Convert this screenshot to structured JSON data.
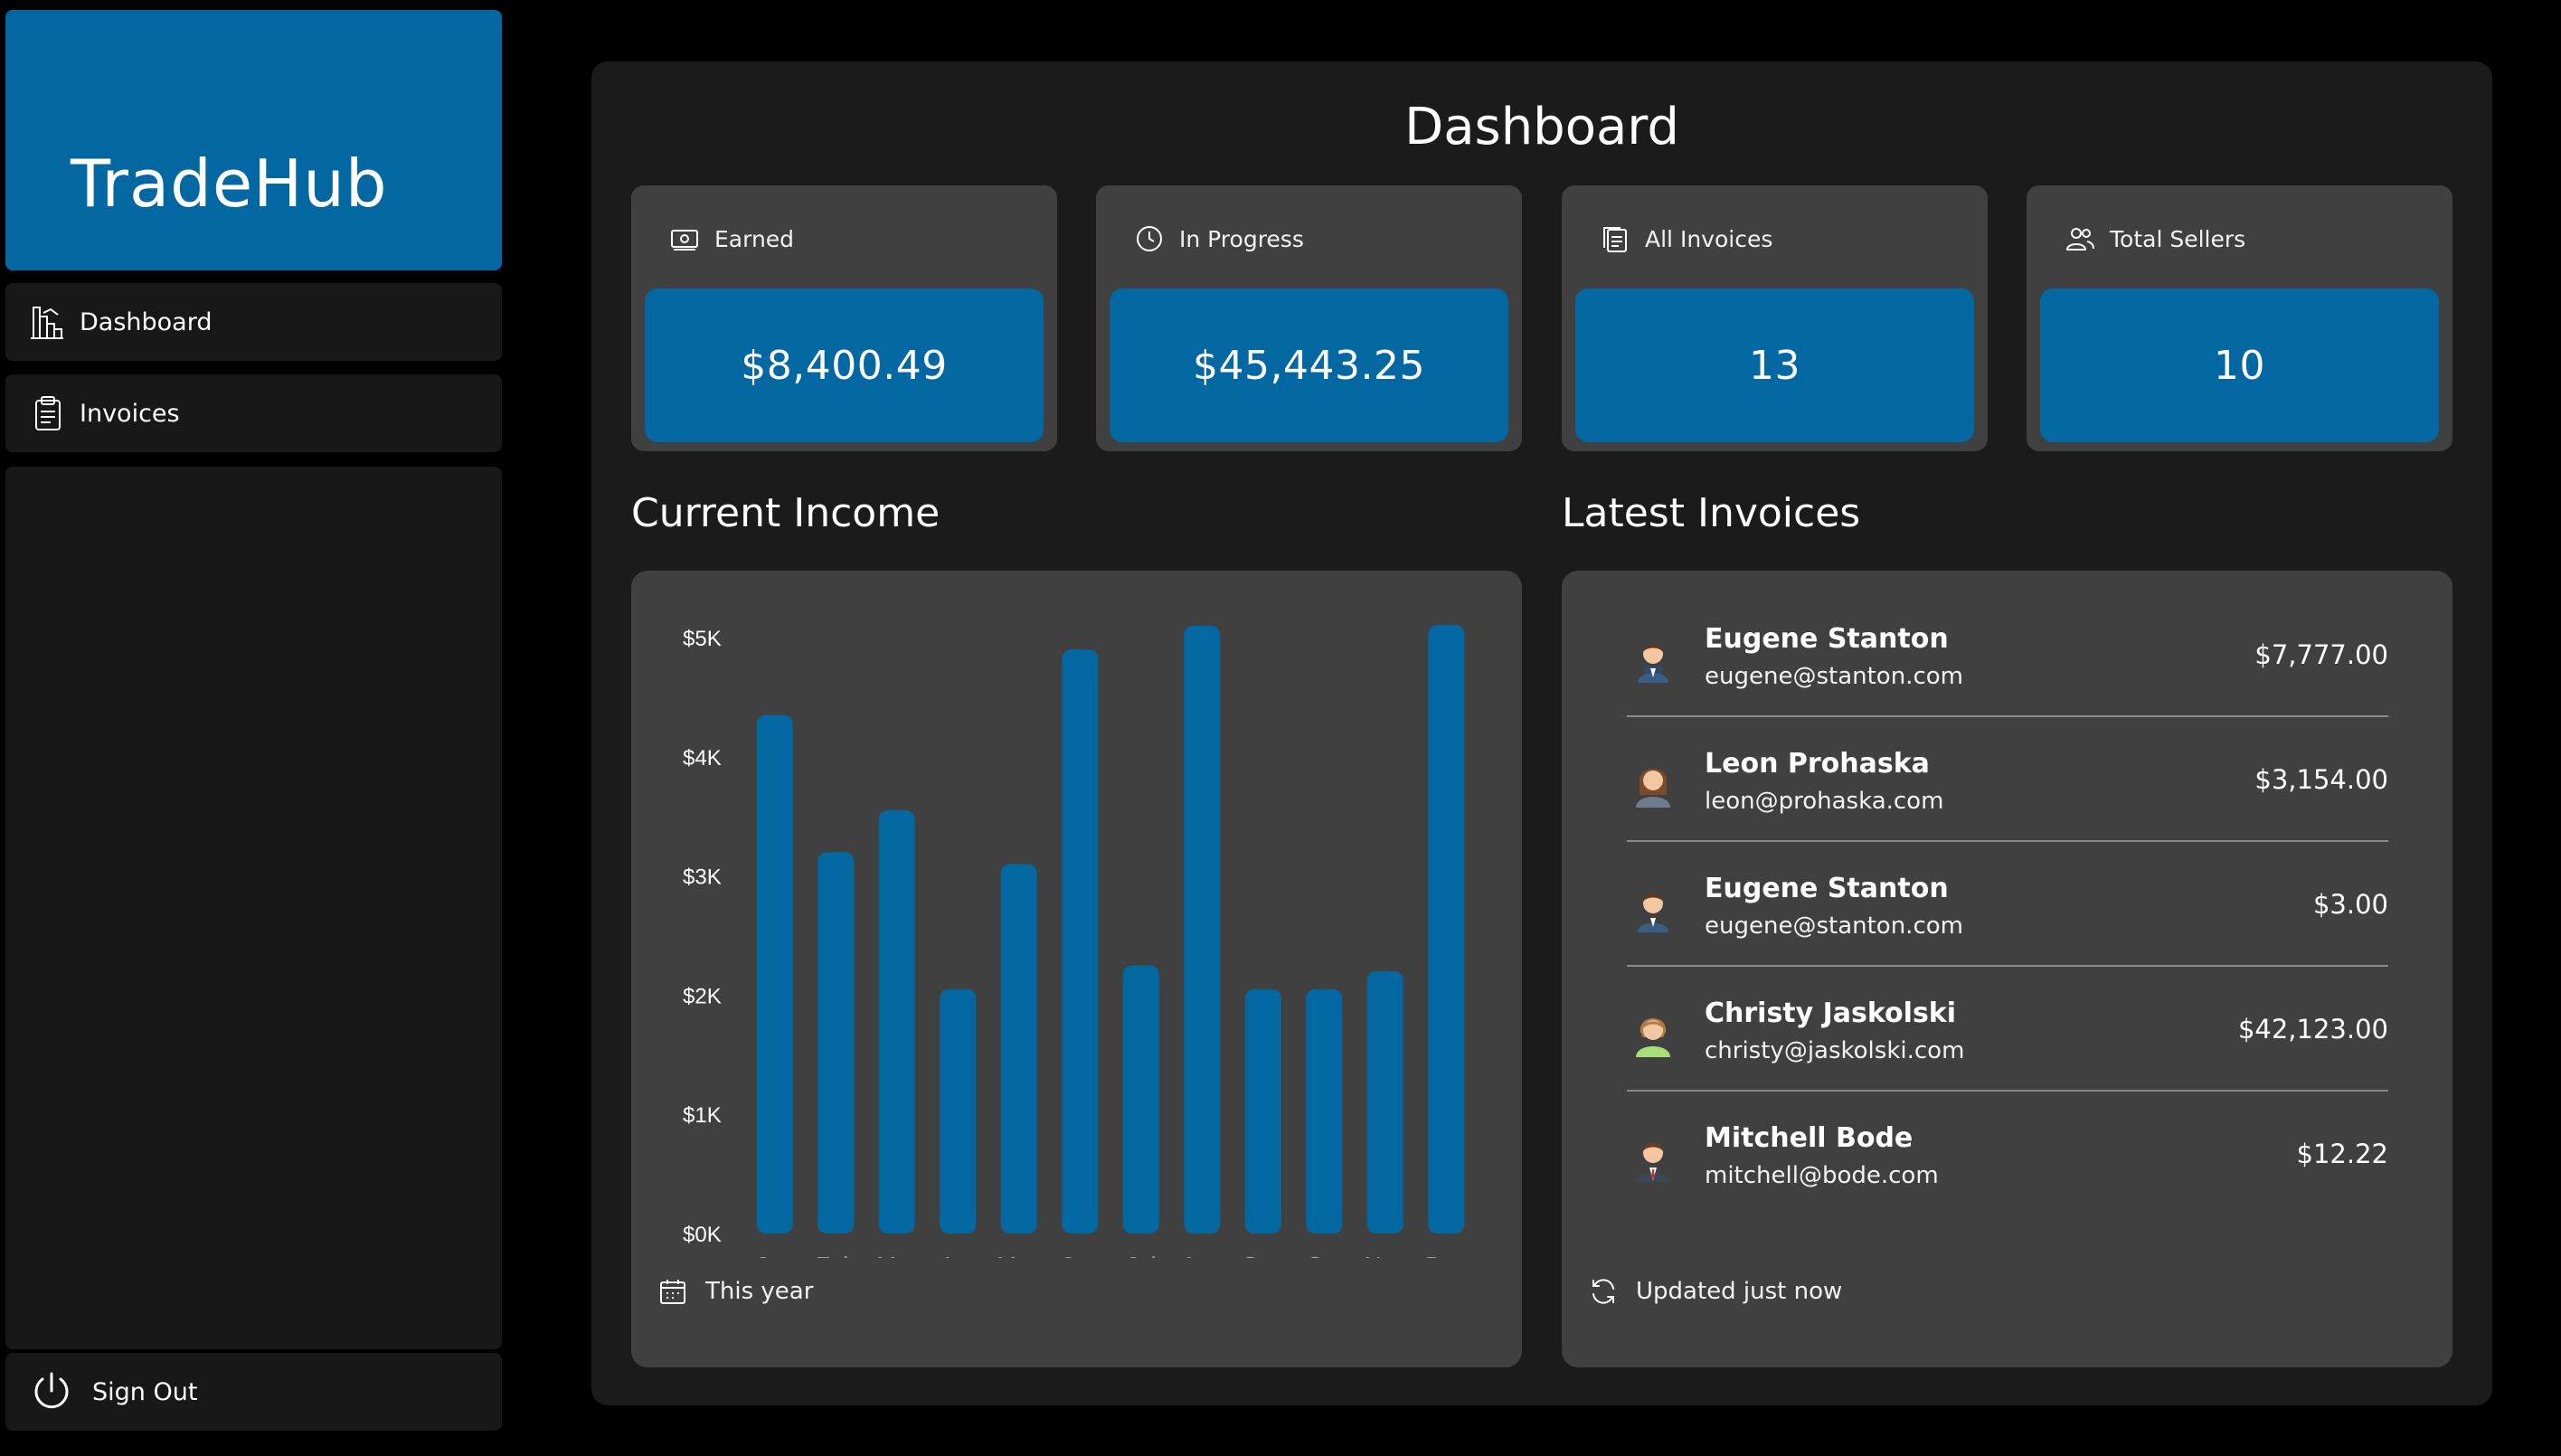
{
  "app": {
    "brand": "TradeHub"
  },
  "sidebar": {
    "items": [
      {
        "label": "Dashboard",
        "icon": "building-chart-icon"
      },
      {
        "label": "Invoices",
        "icon": "clipboard-icon"
      }
    ],
    "signout": {
      "label": "Sign Out",
      "icon": "power-icon"
    }
  },
  "main": {
    "title": "Dashboard"
  },
  "stats": [
    {
      "label": "Earned",
      "value": "$8,400.49",
      "icon": "cash-icon"
    },
    {
      "label": "In Progress",
      "value": "$45,443.25",
      "icon": "clock-icon"
    },
    {
      "label": "All Invoices",
      "value": "13",
      "icon": "documents-icon"
    },
    {
      "label": "Total Sellers",
      "value": "10",
      "icon": "users-icon"
    }
  ],
  "income": {
    "title": "Current Income",
    "footer": "This year"
  },
  "invoices": {
    "title": "Latest Invoices",
    "footer": "Updated just now",
    "items": [
      {
        "name": "Eugene Stanton",
        "email": "eugene@stanton.com",
        "amount": "$7,777.00"
      },
      {
        "name": "Leon Prohaska",
        "email": "leon@prohaska.com",
        "amount": "$3,154.00"
      },
      {
        "name": "Eugene Stanton",
        "email": "eugene@stanton.com",
        "amount": "$3.00"
      },
      {
        "name": "Christy Jaskolski",
        "email": "christy@jaskolski.com",
        "amount": "$42,123.00"
      },
      {
        "name": "Mitchell Bode",
        "email": "mitchell@bode.com",
        "amount": "$12.22"
      }
    ]
  },
  "colors": {
    "accent": "#0368a2",
    "panel": "#404040",
    "main_bg": "#1b1b1b",
    "sidebar_bg": "#181818"
  },
  "chart_data": {
    "type": "bar",
    "categories": [
      "Jan",
      "Feb",
      "Mar",
      "Apr",
      "May",
      "Jun",
      "Jul",
      "Aug",
      "Sep",
      "Oct",
      "Nov",
      "Dec"
    ],
    "values": [
      4350,
      3200,
      3550,
      2050,
      3100,
      4900,
      2250,
      5100,
      2050,
      2050,
      2200,
      5200
    ],
    "ylim": [
      0,
      5000
    ],
    "yticks": [
      "$0K",
      "$1K",
      "$2K",
      "$3K",
      "$4K",
      "$5K"
    ],
    "ytick_values": [
      0,
      1000,
      2000,
      3000,
      4000,
      5000
    ],
    "title": "",
    "xlabel": "",
    "ylabel": "",
    "grid": false
  }
}
